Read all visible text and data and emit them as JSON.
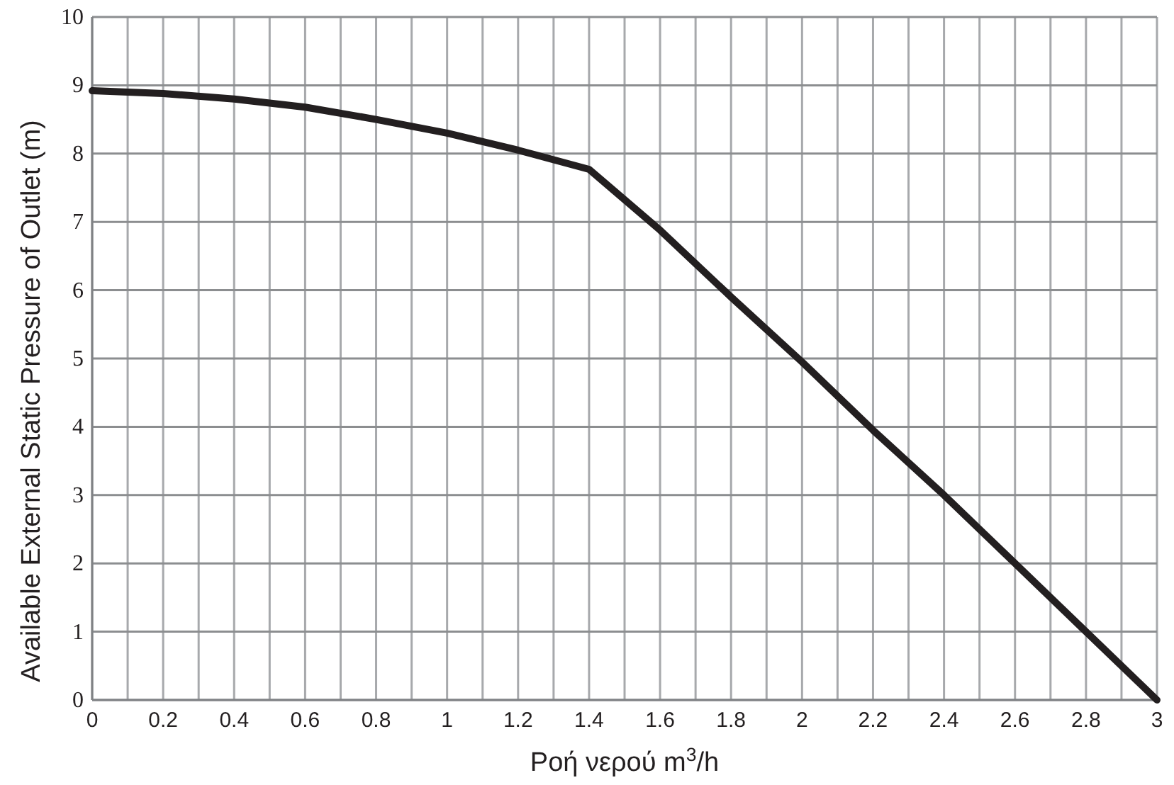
{
  "chart_data": {
    "type": "line",
    "xlabel": "Ροή νερού m$^{3}$/h",
    "ylabel": "Available External Static Pressure of Outlet (m)",
    "x": [
      0,
      0.2,
      0.4,
      0.6,
      0.8,
      1,
      1.2,
      1.4,
      1.6,
      1.8,
      2,
      2.2,
      2.4,
      2.6,
      2.8,
      3
    ],
    "series": [
      {
        "color": "#231f20",
        "values": [
          8.92,
          8.88,
          8.8,
          8.68,
          8.5,
          8.3,
          8.05,
          7.77,
          6.88,
          5.9,
          4.95,
          3.95,
          3.0,
          2.0,
          1.0,
          0
        ]
      }
    ],
    "xlim": [
      0,
      3
    ],
    "ylim": [
      0,
      10
    ],
    "xticks": [
      0,
      {
        "value": 0.1,
        "label": null
      },
      0.2,
      {
        "value": 0.3,
        "label": null
      },
      0.4,
      {
        "value": 0.5,
        "label": null
      },
      0.6,
      {
        "value": 0.7,
        "label": null
      },
      0.8,
      {
        "value": 0.9,
        "label": null
      },
      1,
      {
        "value": 1.1,
        "label": null
      },
      1.2,
      {
        "value": 1.3,
        "label": null
      },
      1.4,
      {
        "value": 1.5,
        "label": null
      },
      1.6,
      {
        "value": 1.7,
        "label": null
      },
      1.8,
      {
        "value": 1.9,
        "label": null
      },
      2,
      {
        "value": 2.1,
        "label": null
      },
      2.2,
      {
        "value": 2.3,
        "label": null
      },
      2.4,
      {
        "value": 2.5,
        "label": null
      },
      2.6,
      {
        "value": 2.7,
        "label": null
      },
      2.8,
      {
        "value": 2.9,
        "label": null
      },
      3
    ],
    "yticks": [
      0,
      1,
      2,
      3,
      4,
      5,
      6,
      7,
      8,
      9,
      10
    ],
    "grid": true,
    "marker": "none",
    "line_style": "solid"
  }
}
